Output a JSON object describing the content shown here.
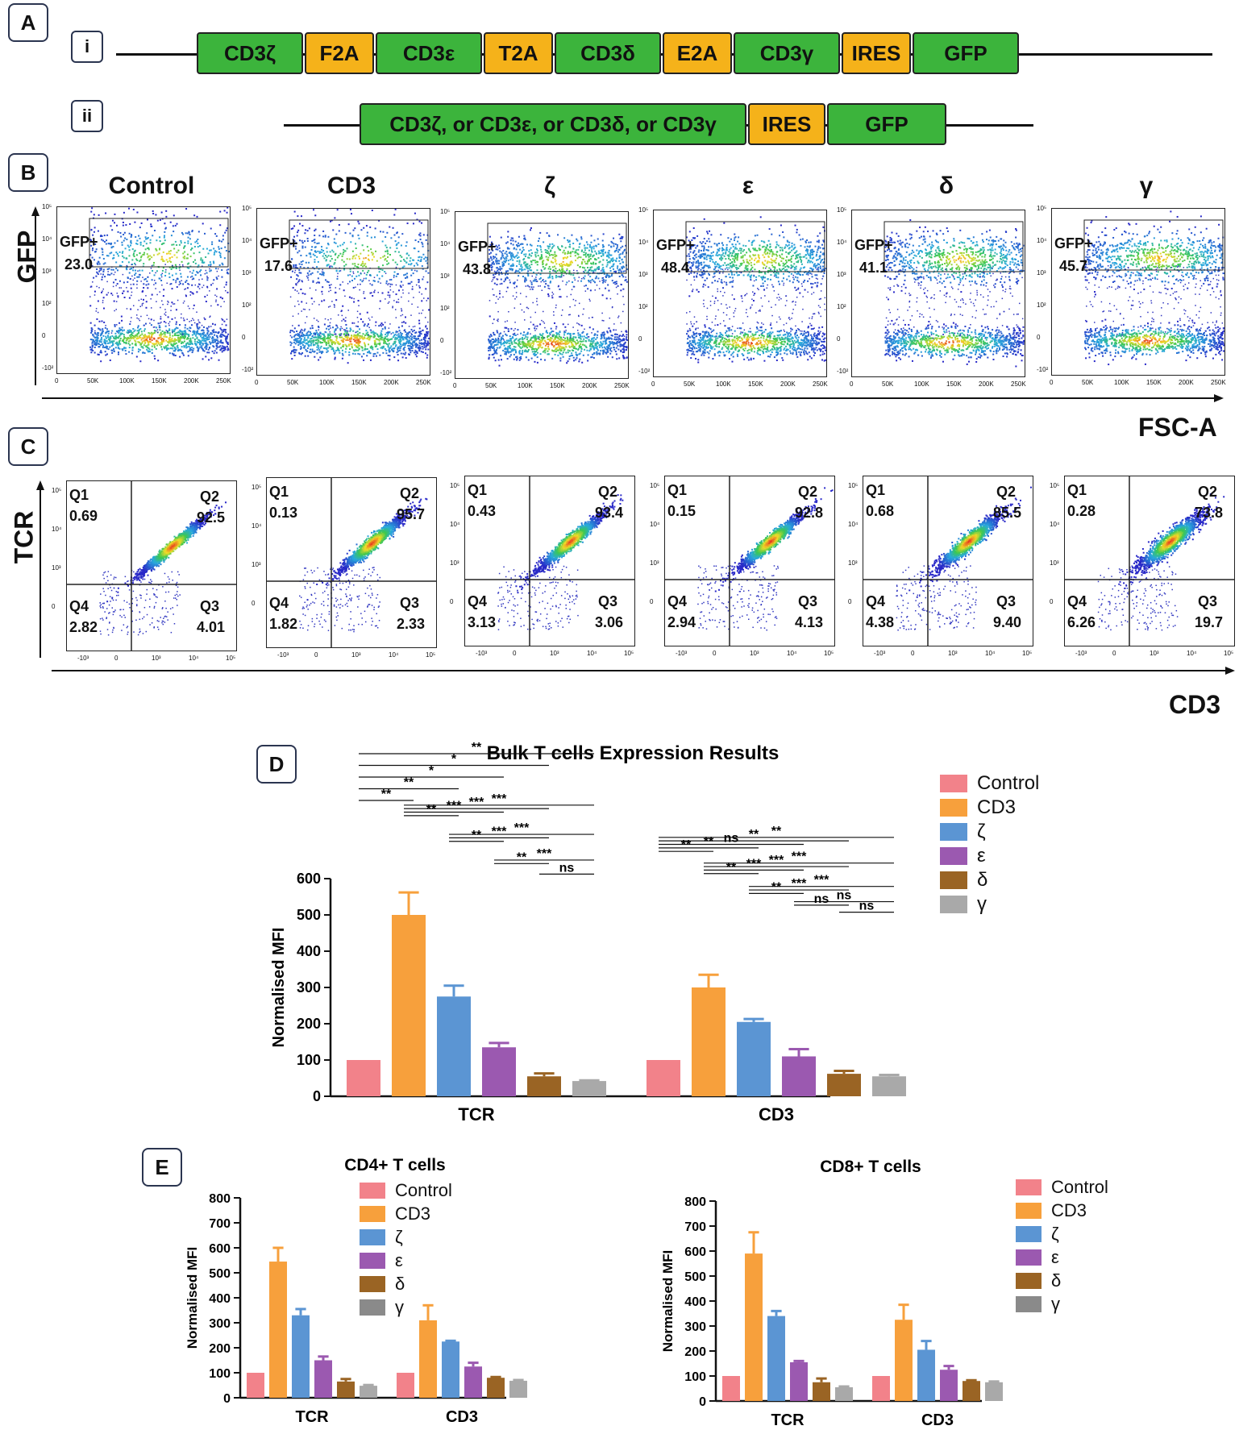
{
  "panels": {
    "a": "A",
    "b": "B",
    "c": "C",
    "d": "D",
    "e": "E"
  },
  "panel_a": {
    "row_i_label": "i",
    "row_ii_label": "ii",
    "row_i": [
      {
        "text": "CD3ζ",
        "color": "green"
      },
      {
        "text": "F2A",
        "color": "orange"
      },
      {
        "text": "CD3ε",
        "color": "green"
      },
      {
        "text": "T2A",
        "color": "orange"
      },
      {
        "text": "CD3δ",
        "color": "green"
      },
      {
        "text": "E2A",
        "color": "orange"
      },
      {
        "text": "CD3γ",
        "color": "green"
      },
      {
        "text": "IRES",
        "color": "orange"
      },
      {
        "text": "GFP",
        "color": "green"
      }
    ],
    "row_ii": [
      {
        "text": "CD3ζ, or CD3ε, or CD3δ, or CD3γ",
        "color": "green"
      },
      {
        "text": "IRES",
        "color": "orange"
      },
      {
        "text": "GFP",
        "color": "green"
      }
    ]
  },
  "panel_b": {
    "y_label": "GFP",
    "x_label": "FSC-A",
    "gate_label": "GFP+",
    "x_ticks": [
      "0",
      "50K",
      "100K",
      "150K",
      "200K",
      "250K"
    ],
    "y_ticks": [
      "10⁵",
      "10⁴",
      "10³",
      "10²",
      "0",
      "-10²"
    ],
    "plots": [
      {
        "title": "Control",
        "value": "23.0"
      },
      {
        "title": "CD3",
        "value": "17.6"
      },
      {
        "title": "ζ",
        "value": "43.8"
      },
      {
        "title": "ε",
        "value": "48.4"
      },
      {
        "title": "δ",
        "value": "41.1"
      },
      {
        "title": "γ",
        "value": "45.7"
      }
    ]
  },
  "panel_c": {
    "y_label": "TCR",
    "x_label": "CD3",
    "x_ticks": [
      "-10³",
      "0",
      "10³",
      "10⁴",
      "10⁵"
    ],
    "y_ticks": [
      "10⁵",
      "10⁴",
      "10³",
      "0"
    ],
    "plots": [
      {
        "q1": "0.69",
        "q2": "92.5",
        "q3": "4.01",
        "q4": "2.82"
      },
      {
        "q1": "0.13",
        "q2": "95.7",
        "q3": "2.33",
        "q4": "1.82"
      },
      {
        "q1": "0.43",
        "q2": "93.4",
        "q3": "3.06",
        "q4": "3.13"
      },
      {
        "q1": "0.15",
        "q2": "92.8",
        "q3": "4.13",
        "q4": "2.94"
      },
      {
        "q1": "0.68",
        "q2": "85.5",
        "q3": "9.40",
        "q4": "4.38"
      },
      {
        "q1": "0.28",
        "q2": "73.8",
        "q3": "19.7",
        "q4": "6.26"
      }
    ],
    "q_names": {
      "q1": "Q1",
      "q2": "Q2",
      "q3": "Q3",
      "q4": "Q4"
    }
  },
  "colors": {
    "Control": "#f2828a",
    "CD3": "#f7a03c",
    "ζ": "#5b95d3",
    "ε": "#9b59b0",
    "δ": "#9a6424",
    "γ": "#a9a9a9",
    "γE": "#8a8a8a"
  },
  "chart_data": [
    {
      "id": "D",
      "type": "bar",
      "title": "Bulk T cells Expression  Results",
      "ylabel": "Normalised MFI",
      "ylim": [
        0,
        600
      ],
      "yticks": [
        0,
        100,
        200,
        300,
        400,
        500,
        600
      ],
      "categories": [
        "TCR",
        "CD3"
      ],
      "series": [
        {
          "name": "Control",
          "values": [
            100,
            100
          ],
          "err": [
            0,
            0
          ]
        },
        {
          "name": "CD3",
          "values": [
            500,
            300
          ],
          "err": [
            62,
            35
          ]
        },
        {
          "name": "ζ",
          "values": [
            275,
            205
          ],
          "err": [
            30,
            8
          ]
        },
        {
          "name": "ε",
          "values": [
            135,
            110
          ],
          "err": [
            12,
            20
          ]
        },
        {
          "name": "δ",
          "values": [
            55,
            62
          ],
          "err": [
            8,
            8
          ]
        },
        {
          "name": "γ",
          "values": [
            42,
            55
          ],
          "err": [
            2,
            4
          ]
        }
      ],
      "significance": [
        {
          "group": 0,
          "from": 0,
          "to": 5,
          "label": "**",
          "level": 6
        },
        {
          "group": 0,
          "from": 0,
          "to": 4,
          "label": "*",
          "level": 5
        },
        {
          "group": 0,
          "from": 0,
          "to": 3,
          "label": "*",
          "level": 4
        },
        {
          "group": 0,
          "from": 0,
          "to": 2,
          "label": "**",
          "level": 3
        },
        {
          "group": 0,
          "from": 0,
          "to": 1,
          "label": "**",
          "level": 2
        },
        {
          "group": 0,
          "from": 1,
          "to": 5,
          "label": "***",
          "level": 1.6
        },
        {
          "group": 0,
          "from": 1,
          "to": 4,
          "label": "***",
          "level": 1.3
        },
        {
          "group": 0,
          "from": 1,
          "to": 3,
          "label": "***",
          "level": 1.0
        },
        {
          "group": 0,
          "from": 1,
          "to": 2,
          "label": "**",
          "level": 0.7
        },
        {
          "group": 0,
          "from": 2,
          "to": 5,
          "label": "***",
          "level": -0.9
        },
        {
          "group": 0,
          "from": 2,
          "to": 4,
          "label": "***",
          "level": -1.2
        },
        {
          "group": 0,
          "from": 2,
          "to": 3,
          "label": "**",
          "level": -1.5
        },
        {
          "group": 0,
          "from": 3,
          "to": 5,
          "label": "***",
          "level": -3.1
        },
        {
          "group": 0,
          "from": 3,
          "to": 4,
          "label": "**",
          "level": -3.4
        },
        {
          "group": 0,
          "from": 4,
          "to": 5,
          "label": "ns",
          "level": -4.3
        },
        {
          "group": 1,
          "from": 0,
          "to": 5,
          "label": "**",
          "level": 1.6
        },
        {
          "group": 1,
          "from": 0,
          "to": 4,
          "label": "**",
          "level": 1.3
        },
        {
          "group": 1,
          "from": 0,
          "to": 3,
          "label": "ns",
          "level": 1.0
        },
        {
          "group": 1,
          "from": 0,
          "to": 2,
          "label": "**",
          "level": 0.7
        },
        {
          "group": 1,
          "from": 0,
          "to": 1,
          "label": "**",
          "level": 0.4
        },
        {
          "group": 1,
          "from": 1,
          "to": 5,
          "label": "***",
          "level": -0.6
        },
        {
          "group": 1,
          "from": 1,
          "to": 4,
          "label": "***",
          "level": -0.9
        },
        {
          "group": 1,
          "from": 1,
          "to": 3,
          "label": "***",
          "level": -1.2
        },
        {
          "group": 1,
          "from": 1,
          "to": 2,
          "label": "**",
          "level": -1.5
        },
        {
          "group": 1,
          "from": 2,
          "to": 5,
          "label": "***",
          "level": -2.6
        },
        {
          "group": 1,
          "from": 2,
          "to": 4,
          "label": "***",
          "level": -2.9
        },
        {
          "group": 1,
          "from": 2,
          "to": 3,
          "label": "**",
          "level": -3.2
        },
        {
          "group": 1,
          "from": 3,
          "to": 5,
          "label": "ns",
          "level": -3.9
        },
        {
          "group": 1,
          "from": 3,
          "to": 4,
          "label": "ns",
          "level": -4.2
        },
        {
          "group": 1,
          "from": 4,
          "to": 5,
          "label": "ns",
          "level": -4.8
        }
      ]
    },
    {
      "id": "E1",
      "type": "bar",
      "title": "CD4+ T cells",
      "ylabel": "Normalised MFI",
      "ylim": [
        0,
        800
      ],
      "yticks": [
        0,
        100,
        200,
        300,
        400,
        500,
        600,
        700,
        800
      ],
      "categories": [
        "TCR",
        "CD3"
      ],
      "series": [
        {
          "name": "Control",
          "values": [
            100,
            100
          ],
          "err": [
            0,
            0
          ]
        },
        {
          "name": "CD3",
          "values": [
            545,
            310
          ],
          "err": [
            55,
            60
          ]
        },
        {
          "name": "ζ",
          "values": [
            330,
            225
          ],
          "err": [
            25,
            3
          ]
        },
        {
          "name": "ε",
          "values": [
            150,
            125
          ],
          "err": [
            15,
            15
          ]
        },
        {
          "name": "δ",
          "values": [
            65,
            80
          ],
          "err": [
            10,
            3
          ]
        },
        {
          "name": "γ",
          "values": [
            48,
            68
          ],
          "err": [
            3,
            3
          ]
        }
      ]
    },
    {
      "id": "E2",
      "type": "bar",
      "title": "CD8+ T cells",
      "ylabel": "Normalised MFI",
      "ylim": [
        0,
        800
      ],
      "yticks": [
        0,
        100,
        200,
        300,
        400,
        500,
        600,
        700,
        800
      ],
      "categories": [
        "TCR",
        "CD3"
      ],
      "series": [
        {
          "name": "Control",
          "values": [
            100,
            100
          ],
          "err": [
            0,
            0
          ]
        },
        {
          "name": "CD3",
          "values": [
            590,
            325
          ],
          "err": [
            85,
            60
          ]
        },
        {
          "name": "ζ",
          "values": [
            340,
            205
          ],
          "err": [
            20,
            35
          ]
        },
        {
          "name": "ε",
          "values": [
            155,
            125
          ],
          "err": [
            5,
            15
          ]
        },
        {
          "name": "δ",
          "values": [
            75,
            80
          ],
          "err": [
            15,
            3
          ]
        },
        {
          "name": "γ",
          "values": [
            55,
            75
          ],
          "err": [
            3,
            3
          ]
        }
      ]
    }
  ]
}
